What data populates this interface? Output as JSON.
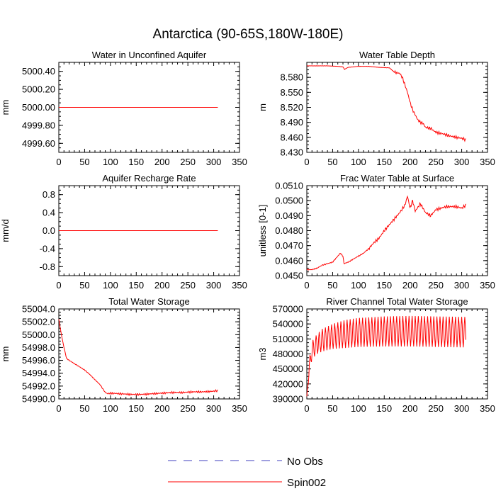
{
  "figure": {
    "title": "Antarctica (90-65S,180W-180E)"
  },
  "legend": {
    "entries": [
      {
        "label": "No Obs",
        "color": "#3f3fbf",
        "dash": true
      },
      {
        "label": "Spin002",
        "color": "#ff0000",
        "dash": false
      }
    ]
  },
  "chart_data": [
    {
      "type": "line",
      "title": "Water in Unconfined Aquifer",
      "xlabel": "",
      "ylabel": "mm",
      "xlim": [
        0,
        350
      ],
      "ylim": [
        4999.5,
        5000.5
      ],
      "xticks": [
        0,
        50,
        100,
        150,
        200,
        250,
        300,
        350
      ],
      "yticks": [
        4999.6,
        4999.8,
        5000.0,
        5000.2,
        5000.4
      ],
      "ytick_labels": [
        "4999.60",
        "4999.80",
        "5000.00",
        "5000.20",
        "5000.40"
      ],
      "series": [
        {
          "name": "Spin002",
          "color": "#ff0000",
          "x": [
            0,
            100,
            200,
            308
          ],
          "values": [
            5000.0,
            5000.0,
            5000.0,
            5000.0
          ]
        }
      ]
    },
    {
      "type": "line",
      "title": "Water Table Depth",
      "xlabel": "",
      "ylabel": "m",
      "xlim": [
        0,
        350
      ],
      "ylim": [
        8.43,
        8.61
      ],
      "xticks": [
        0,
        50,
        100,
        150,
        200,
        250,
        300,
        350
      ],
      "yticks": [
        8.43,
        8.46,
        8.49,
        8.52,
        8.55,
        8.58
      ],
      "ytick_labels": [
        "8.430",
        "8.460",
        "8.490",
        "8.520",
        "8.550",
        "8.580"
      ],
      "series": [
        {
          "name": "Spin002",
          "color": "#ff0000",
          "x": [
            0,
            20,
            40,
            60,
            70,
            73,
            80,
            100,
            120,
            140,
            160,
            170,
            180,
            185,
            190,
            195,
            200,
            205,
            210,
            215,
            220,
            225,
            230,
            240,
            250,
            260,
            270,
            280,
            290,
            300,
            308
          ],
          "values": [
            8.603,
            8.603,
            8.603,
            8.602,
            8.601,
            8.596,
            8.6,
            8.602,
            8.602,
            8.6,
            8.599,
            8.59,
            8.588,
            8.58,
            8.565,
            8.55,
            8.53,
            8.515,
            8.505,
            8.495,
            8.49,
            8.488,
            8.48,
            8.478,
            8.47,
            8.468,
            8.465,
            8.462,
            8.46,
            8.458,
            8.455
          ]
        }
      ]
    },
    {
      "type": "line",
      "title": "Aquifer Recharge Rate",
      "xlabel": "",
      "ylabel": "mm/d",
      "xlim": [
        0,
        350
      ],
      "ylim": [
        -1.0,
        1.0
      ],
      "xticks": [
        0,
        50,
        100,
        150,
        200,
        250,
        300,
        350
      ],
      "yticks": [
        -0.8,
        -0.4,
        0.0,
        0.4,
        0.8
      ],
      "ytick_labels": [
        "-0.8",
        "-0.4",
        "0.0",
        "0.4",
        "0.8"
      ],
      "series": [
        {
          "name": "Spin002",
          "color": "#ff0000",
          "x": [
            0,
            100,
            200,
            308
          ],
          "values": [
            0.0,
            0.0,
            0.0,
            0.0
          ]
        }
      ]
    },
    {
      "type": "line",
      "title": "Frac Water Table at Surface",
      "xlabel": "",
      "ylabel": "unitless [0-1]",
      "xlim": [
        0,
        350
      ],
      "ylim": [
        0.045,
        0.051
      ],
      "xticks": [
        0,
        50,
        100,
        150,
        200,
        250,
        300,
        350
      ],
      "yticks": [
        0.045,
        0.046,
        0.047,
        0.048,
        0.049,
        0.05,
        0.051
      ],
      "ytick_labels": [
        "0.0450",
        "0.0460",
        "0.0470",
        "0.0480",
        "0.0490",
        "0.0500",
        "0.0510"
      ],
      "series": [
        {
          "name": "Spin002",
          "color": "#ff0000",
          "x": [
            0,
            10,
            20,
            30,
            40,
            50,
            55,
            60,
            65,
            70,
            72,
            80,
            90,
            100,
            110,
            120,
            130,
            140,
            150,
            160,
            170,
            180,
            190,
            195,
            200,
            205,
            210,
            220,
            230,
            240,
            250,
            260,
            270,
            280,
            290,
            300,
            308
          ],
          "values": [
            0.0454,
            0.0454,
            0.0455,
            0.0457,
            0.0458,
            0.0459,
            0.0461,
            0.0463,
            0.0465,
            0.0463,
            0.0458,
            0.0459,
            0.0461,
            0.0463,
            0.0465,
            0.0468,
            0.0472,
            0.0475,
            0.048,
            0.0484,
            0.0488,
            0.0492,
            0.0497,
            0.0503,
            0.0495,
            0.05,
            0.0493,
            0.0498,
            0.0492,
            0.049,
            0.0494,
            0.0495,
            0.0496,
            0.0496,
            0.0496,
            0.0495,
            0.0497
          ]
        }
      ]
    },
    {
      "type": "line",
      "title": "Total Water Storage",
      "xlabel": "",
      "ylabel": "mm",
      "xlim": [
        0,
        350
      ],
      "ylim": [
        54990.0,
        55004.0
      ],
      "xticks": [
        0,
        50,
        100,
        150,
        200,
        250,
        300,
        350
      ],
      "yticks": [
        54990.0,
        54992.0,
        54994.0,
        54996.0,
        54998.0,
        55000.0,
        55002.0,
        55004.0
      ],
      "ytick_labels": [
        "54990.0",
        "54992.0",
        "54994.0",
        "54996.0",
        "54998.0",
        "55000.0",
        "55002.0",
        "55004.0"
      ],
      "series": [
        {
          "name": "Spin002",
          "color": "#ff0000",
          "x": [
            0,
            5,
            10,
            15,
            20,
            30,
            40,
            50,
            60,
            70,
            80,
            90,
            95,
            100,
            120,
            140,
            160,
            180,
            200,
            220,
            240,
            260,
            280,
            300,
            308
          ],
          "values": [
            55002.4,
            55000.0,
            54998.0,
            54996.3,
            54996.0,
            54995.5,
            54995.0,
            54994.5,
            54993.8,
            54993.0,
            54992.2,
            54991.0,
            54990.8,
            54990.9,
            54990.8,
            54990.7,
            54990.7,
            54990.8,
            54990.9,
            54991.0,
            54991.0,
            54991.1,
            54991.1,
            54991.2,
            54991.3
          ]
        }
      ]
    },
    {
      "type": "line",
      "title": "River Channel Total Water Storage",
      "xlabel": "",
      "ylabel": "m3",
      "xlim": [
        0,
        350
      ],
      "ylim": [
        390000,
        570000
      ],
      "xticks": [
        0,
        50,
        100,
        150,
        200,
        250,
        300,
        350
      ],
      "yticks": [
        390000,
        420000,
        450000,
        480000,
        510000,
        540000,
        570000
      ],
      "ytick_labels": [
        "390000",
        "420000",
        "450000",
        "480000",
        "510000",
        "540000",
        "570000"
      ],
      "envelope": {
        "x": [
          0,
          5,
          10,
          20,
          30,
          50,
          75,
          100,
          150,
          200,
          250,
          308
        ],
        "upper": [
          395000,
          470000,
          505000,
          520000,
          530000,
          540000,
          548000,
          552000,
          555000,
          556000,
          555000,
          554000
        ],
        "lower": [
          395000,
          440000,
          470000,
          480000,
          485000,
          490000,
          492000,
          494000,
          495000,
          495000,
          494000,
          493000
        ]
      },
      "series": [
        {
          "name": "Spin002",
          "color": "#ff0000",
          "x": [
            0,
            308
          ],
          "values": [
            395000,
            525000
          ]
        }
      ]
    }
  ]
}
